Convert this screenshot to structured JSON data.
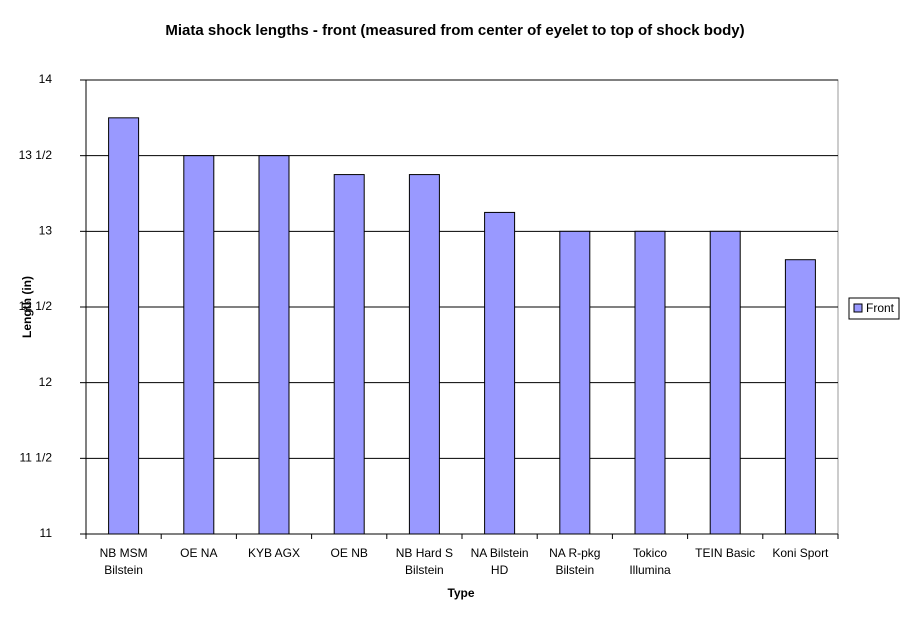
{
  "chart_data": {
    "type": "bar",
    "title": "Miata shock lengths - front (measured from center of eyelet to top of shock body)",
    "x_label": "Type",
    "y_label": "Length (in)",
    "categories": [
      "NB MSM Bilstein",
      "OE NA",
      "KYB AGX",
      "OE NB",
      "NB Hard S Bilstein",
      "NA Bilstein HD",
      "NA R-pkg Bilstein",
      "Tokico Illumina",
      "TEIN Basic",
      "Koni Sport"
    ],
    "series": [
      {
        "name": "Front",
        "color": "#9999ff",
        "values": [
          13.75,
          13.5,
          13.5,
          13.375,
          13.375,
          13.125,
          13,
          13,
          13,
          12.8125
        ]
      }
    ],
    "ylim": [
      11,
      14
    ],
    "yticks": [
      11,
      {
        "value": 11.5,
        "label": "11 1/2"
      },
      12,
      {
        "value": 12.5,
        "label": "12 1/2"
      },
      13,
      {
        "value": 13.5,
        "label": "13 1/2"
      },
      14
    ],
    "grid": true,
    "legend": "right"
  }
}
